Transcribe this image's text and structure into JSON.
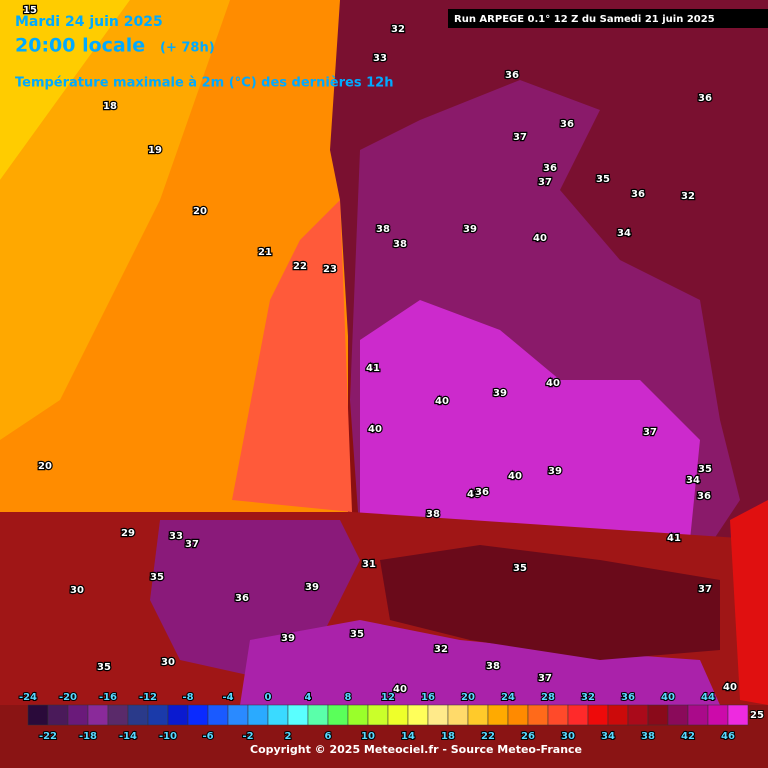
{
  "header": {
    "date": "Mardi 24 juin 2025",
    "time": "20:00 locale",
    "lead": "(+ 78h)",
    "subtitle": "Température maximale à 2m (°C) des dernières 12h",
    "run": "Run ARPEGE 0.1° 12 Z du Samedi 21 juin 2025"
  },
  "scale": {
    "colors": [
      "#2a0a3a",
      "#4a1a5a",
      "#6a1a7a",
      "#8a2a9a",
      "#5a2a6a",
      "#2a3a8a",
      "#1a3aaa",
      "#0a1ad0",
      "#0a2aff",
      "#1a5aff",
      "#2a8aff",
      "#2aaaff",
      "#3adaff",
      "#5affff",
      "#5affaa",
      "#5aff5a",
      "#9aff2a",
      "#caff2a",
      "#eeff2a",
      "#ffff5a",
      "#ffea8a",
      "#ffda6a",
      "#ffca2a",
      "#ffaa00",
      "#ff8a00",
      "#ff6a1a",
      "#ff4a2a",
      "#ff2a2a",
      "#ee0a0a",
      "#cc0a0a",
      "#aa0a1a",
      "#8a0a1a",
      "#8a0a5a",
      "#aa0a8a",
      "#cc0aaa",
      "#ee2ae0"
    ],
    "labels_top": [
      -24,
      -20,
      -16,
      -12,
      -8,
      -4,
      0,
      4,
      8,
      12,
      16,
      20,
      24,
      28,
      32,
      36,
      40,
      44
    ],
    "labels_bottom": [
      -22,
      -18,
      -14,
      -10,
      -6,
      -2,
      2,
      6,
      10,
      14,
      18,
      22,
      26,
      30,
      34,
      38,
      42,
      46
    ],
    "end_label": 25
  },
  "map_labels": [
    15,
    18,
    19,
    20,
    21,
    22,
    23,
    20,
    33,
    32,
    36,
    36,
    36,
    37,
    36,
    37,
    35,
    36,
    32,
    34,
    38,
    38,
    39,
    40,
    41,
    40,
    40,
    39,
    40,
    40,
    38,
    37,
    41,
    39,
    31,
    29,
    30,
    33,
    35,
    36,
    35,
    39,
    40,
    37,
    36,
    32,
    38,
    35,
    37,
    40,
    39,
    34,
    35,
    36,
    35,
    30,
    37,
    40
  ],
  "footer": {
    "copyright": "Copyright © 2025 Meteociel.fr - Source Meteo-France"
  }
}
